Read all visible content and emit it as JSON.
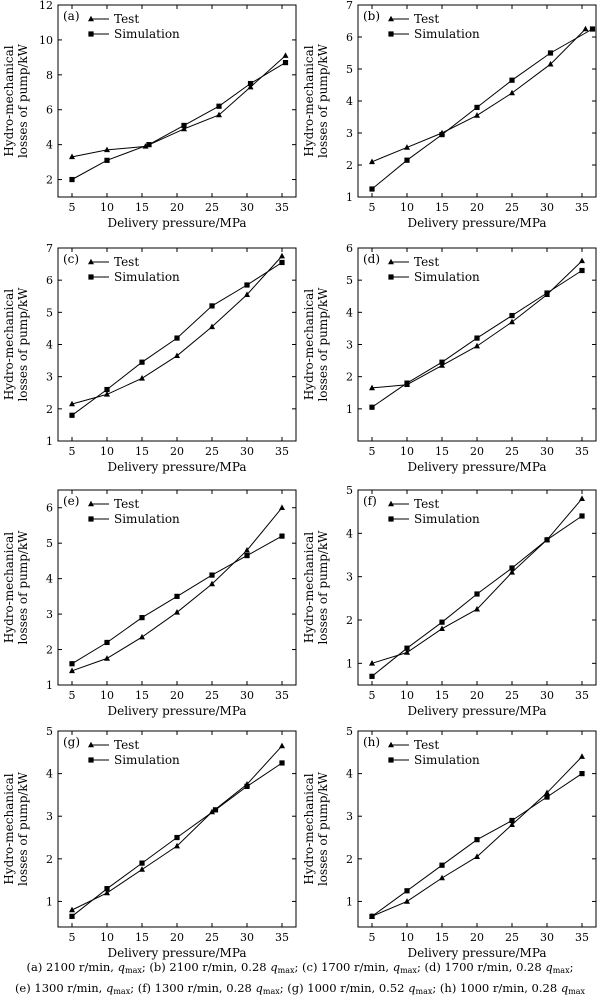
{
  "chart_data": [
    {
      "type": "line",
      "panel_label": "(a)",
      "xlabel": "Delivery pressure/MPa",
      "ylabel": [
        "Hydro-mechanical",
        "losses of pump/kW"
      ],
      "xlim": [
        3,
        37
      ],
      "xticks": [
        5,
        10,
        15,
        20,
        25,
        30,
        35
      ],
      "ylim": [
        1,
        12
      ],
      "yticks": [
        2,
        4,
        6,
        8,
        10,
        12
      ],
      "legend": "top-left",
      "series": [
        {
          "name": "Test",
          "marker": "triangle",
          "x": [
            5,
            10,
            15.5,
            21,
            26,
            30.5,
            35.5
          ],
          "y": [
            3.3,
            3.7,
            3.9,
            4.9,
            5.7,
            7.3,
            9.1
          ]
        },
        {
          "name": "Simulation",
          "marker": "square",
          "x": [
            5,
            10,
            16,
            21,
            26,
            30.5,
            35.5
          ],
          "y": [
            2.0,
            3.1,
            4.0,
            5.1,
            6.2,
            7.5,
            8.7
          ]
        }
      ]
    },
    {
      "type": "line",
      "panel_label": "(b)",
      "xlabel": "Delivery pressure/MPa",
      "ylabel": [
        "Hydro-mechanical",
        "losses of pump/kW"
      ],
      "xlim": [
        3,
        37
      ],
      "xticks": [
        5,
        10,
        15,
        20,
        25,
        30,
        35
      ],
      "ylim": [
        1,
        7
      ],
      "yticks": [
        1,
        2,
        3,
        4,
        5,
        6,
        7
      ],
      "legend": "top-left",
      "series": [
        {
          "name": "Test",
          "marker": "triangle",
          "x": [
            5,
            10,
            15,
            20,
            25,
            30.5,
            35.5
          ],
          "y": [
            2.1,
            2.55,
            3.0,
            3.55,
            4.25,
            5.15,
            6.25
          ]
        },
        {
          "name": "Simulation",
          "marker": "square",
          "x": [
            5,
            10,
            15,
            20,
            25,
            30.5,
            36.5
          ],
          "y": [
            1.25,
            2.15,
            2.95,
            3.8,
            4.65,
            5.5,
            6.25
          ]
        }
      ]
    },
    {
      "type": "line",
      "panel_label": "(c)",
      "xlabel": "Delivery pressure/MPa",
      "ylabel": [
        "Hydro-mechanical",
        "losses of pump/kW"
      ],
      "xlim": [
        3,
        37
      ],
      "xticks": [
        5,
        10,
        15,
        20,
        25,
        30,
        35
      ],
      "ylim": [
        1,
        7
      ],
      "yticks": [
        1,
        2,
        3,
        4,
        5,
        6,
        7
      ],
      "legend": "top-left",
      "series": [
        {
          "name": "Test",
          "marker": "triangle",
          "x": [
            5,
            10,
            15,
            20,
            25,
            30,
            35
          ],
          "y": [
            2.15,
            2.45,
            2.95,
            3.65,
            4.55,
            5.55,
            6.75
          ]
        },
        {
          "name": "Simulation",
          "marker": "square",
          "x": [
            5,
            10,
            15,
            20,
            25,
            30,
            35
          ],
          "y": [
            1.8,
            2.6,
            3.45,
            4.2,
            5.2,
            5.85,
            6.55
          ]
        }
      ]
    },
    {
      "type": "line",
      "panel_label": "(d)",
      "xlabel": "Delivery pressure/MPa",
      "ylabel": [
        "Hydro-mechanical",
        "losses of pump/kW"
      ],
      "xlim": [
        3,
        37
      ],
      "xticks": [
        5,
        10,
        15,
        20,
        25,
        30,
        35
      ],
      "ylim": [
        0,
        6
      ],
      "yticks": [
        1,
        2,
        3,
        4,
        5,
        6
      ],
      "legend": "top-left",
      "series": [
        {
          "name": "Test",
          "marker": "triangle",
          "x": [
            5,
            10,
            15,
            20,
            25,
            30,
            35
          ],
          "y": [
            1.65,
            1.75,
            2.35,
            2.95,
            3.7,
            4.55,
            5.6
          ]
        },
        {
          "name": "Simulation",
          "marker": "square",
          "x": [
            5,
            10,
            15,
            20,
            25,
            30,
            35
          ],
          "y": [
            1.05,
            1.8,
            2.45,
            3.2,
            3.9,
            4.6,
            5.3
          ]
        }
      ]
    },
    {
      "type": "line",
      "panel_label": "(e)",
      "xlabel": "Delivery pressure/MPa",
      "ylabel": [
        "Hydro-mechanical",
        "losses of pump/kW"
      ],
      "xlim": [
        3,
        37
      ],
      "xticks": [
        5,
        10,
        15,
        20,
        25,
        30,
        35
      ],
      "ylim": [
        1,
        6.5
      ],
      "yticks": [
        1,
        2,
        3,
        4,
        5,
        6
      ],
      "legend": "top-left",
      "series": [
        {
          "name": "Test",
          "marker": "triangle",
          "x": [
            5,
            10,
            15,
            20,
            25,
            30,
            35
          ],
          "y": [
            1.4,
            1.75,
            2.35,
            3.05,
            3.85,
            4.8,
            6.0
          ]
        },
        {
          "name": "Simulation",
          "marker": "square",
          "x": [
            5,
            10,
            15,
            20,
            25,
            30,
            35
          ],
          "y": [
            1.6,
            2.2,
            2.9,
            3.5,
            4.1,
            4.65,
            5.2
          ]
        }
      ]
    },
    {
      "type": "line",
      "panel_label": "(f)",
      "xlabel": "Delivery pressure/MPa",
      "ylabel": [
        "Hydro-mechanical",
        "losses of pump/kW"
      ],
      "xlim": [
        3,
        37
      ],
      "xticks": [
        5,
        10,
        15,
        20,
        25,
        30,
        35
      ],
      "ylim": [
        0.5,
        5
      ],
      "yticks": [
        1,
        2,
        3,
        4,
        5
      ],
      "legend": "top-left",
      "series": [
        {
          "name": "Test",
          "marker": "triangle",
          "x": [
            5,
            10,
            15,
            20,
            25,
            30,
            35
          ],
          "y": [
            1.0,
            1.25,
            1.8,
            2.25,
            3.1,
            3.85,
            4.8
          ]
        },
        {
          "name": "Simulation",
          "marker": "square",
          "x": [
            5,
            10,
            15,
            20,
            25,
            30,
            35
          ],
          "y": [
            0.7,
            1.35,
            1.95,
            2.6,
            3.2,
            3.85,
            4.4
          ]
        }
      ]
    },
    {
      "type": "line",
      "panel_label": "(g)",
      "xlabel": "Delivery pressure/MPa",
      "ylabel": [
        "Hydro-mechanical",
        "losses of pump/kW"
      ],
      "xlim": [
        3,
        37
      ],
      "xticks": [
        5,
        10,
        15,
        20,
        25,
        30,
        35
      ],
      "ylim": [
        0.4,
        5
      ],
      "yticks": [
        1,
        2,
        3,
        4,
        5
      ],
      "legend": "top-left",
      "series": [
        {
          "name": "Test",
          "marker": "triangle",
          "x": [
            5,
            10,
            15,
            20,
            25,
            30,
            35
          ],
          "y": [
            0.8,
            1.2,
            1.75,
            2.3,
            3.1,
            3.75,
            4.65
          ]
        },
        {
          "name": "Simulation",
          "marker": "square",
          "x": [
            5,
            10,
            15,
            20,
            25.5,
            30,
            35
          ],
          "y": [
            0.65,
            1.3,
            1.9,
            2.5,
            3.15,
            3.7,
            4.25
          ]
        }
      ]
    },
    {
      "type": "line",
      "panel_label": "(h)",
      "xlabel": "Delivery pressure/MPa",
      "ylabel": [
        "Hydro-mechanical",
        "losses of pump/kW"
      ],
      "xlim": [
        3,
        37
      ],
      "xticks": [
        5,
        10,
        15,
        20,
        25,
        30,
        35
      ],
      "ylim": [
        0.4,
        5
      ],
      "yticks": [
        1,
        2,
        3,
        4,
        5
      ],
      "legend": "top-left",
      "series": [
        {
          "name": "Test",
          "marker": "triangle",
          "x": [
            5,
            10,
            15,
            20,
            25,
            30,
            35
          ],
          "y": [
            0.65,
            1.0,
            1.55,
            2.05,
            2.8,
            3.55,
            4.4
          ]
        },
        {
          "name": "Simulation",
          "marker": "square",
          "x": [
            5,
            10,
            15,
            20,
            25,
            30,
            35
          ],
          "y": [
            0.65,
            1.25,
            1.85,
            2.45,
            2.9,
            3.45,
            4.0
          ]
        }
      ]
    }
  ],
  "caption": {
    "line1": [
      {
        "prefix": "(a) 2100 r/min, ",
        "tail": "; "
      },
      {
        "prefix": "(b) 2100 r/min, 0.28 ",
        "tail": "; "
      },
      {
        "prefix": "(c) 1700 r/min, ",
        "tail": "; "
      },
      {
        "prefix": "(d) 1700 r/min, 0.28 ",
        "tail": ";"
      }
    ],
    "line2": [
      {
        "prefix": "(e) 1300 r/min, ",
        "tail": "; "
      },
      {
        "prefix": "(f) 1300 r/min, 0.28 ",
        "tail": "; "
      },
      {
        "prefix": "(g) 1000 r/min, 0.52 ",
        "tail": "; "
      },
      {
        "prefix": "(h) 1000 r/min, 0.28 ",
        "tail": ""
      }
    ],
    "q": "q",
    "q_sub": "max"
  }
}
